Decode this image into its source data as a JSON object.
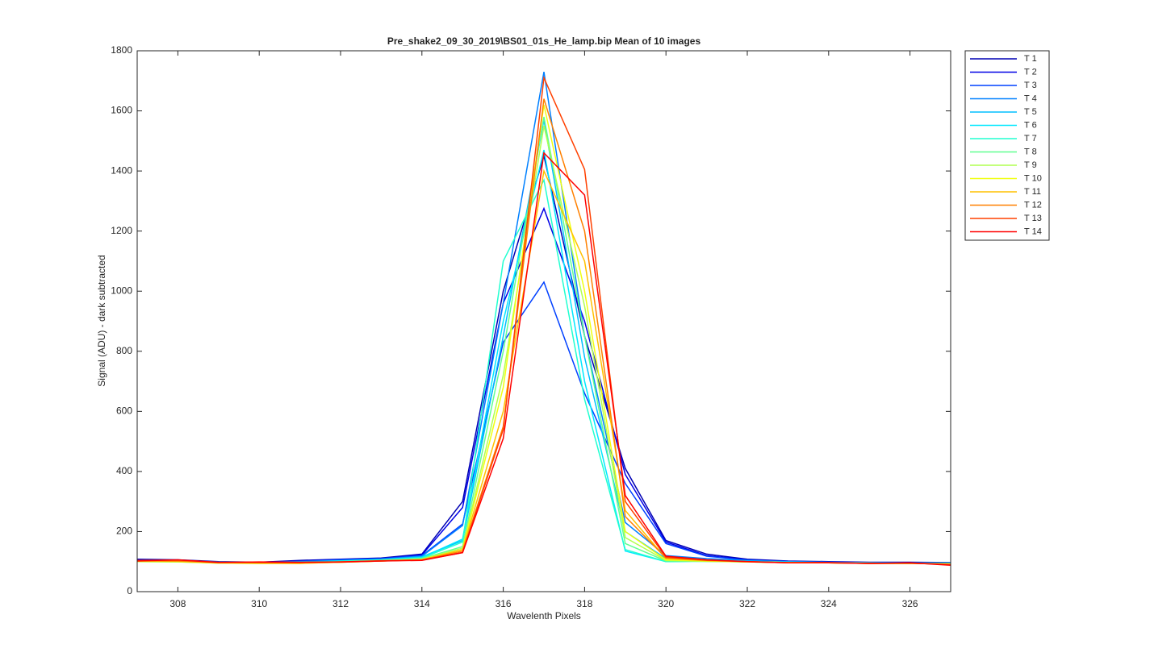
{
  "chart_data": {
    "type": "line",
    "title": "Pre_shake2_09_30_2019\\BS01_01s_He_lamp.bip  Mean of 10 images",
    "x_label": "Wavelenth Pixels",
    "y_label": "Signal (ADU) - dark subtracted",
    "x": [
      307,
      308,
      309,
      310,
      311,
      312,
      313,
      314,
      315,
      316,
      317,
      318,
      319,
      320,
      321,
      322,
      323,
      324,
      325,
      326,
      327
    ],
    "xlim": [
      307,
      327
    ],
    "xticks": [
      308,
      310,
      312,
      314,
      316,
      318,
      320,
      322,
      324,
      326
    ],
    "ylim": [
      0,
      1800
    ],
    "yticks": [
      0,
      200,
      400,
      600,
      800,
      1000,
      1200,
      1400,
      1600,
      1800
    ],
    "grid": false,
    "legend": "outside-top-right",
    "series": [
      {
        "name": "T 1",
        "color": "#0000b4",
        "values": [
          108,
          106,
          100,
          98,
          104,
          108,
          112,
          125,
          300,
          1000,
          1450,
          850,
          410,
          170,
          125,
          108,
          102,
          100,
          98,
          98,
          97
        ]
      },
      {
        "name": "T 2",
        "color": "#0000e6",
        "values": [
          106,
          104,
          99,
          98,
          102,
          107,
          110,
          122,
          280,
          960,
          1275,
          900,
          390,
          165,
          120,
          106,
          101,
          99,
          97,
          97,
          96
        ]
      },
      {
        "name": "T 3",
        "color": "#0040ff",
        "values": [
          104,
          103,
          99,
          97,
          101,
          106,
          110,
          120,
          225,
          830,
          1030,
          660,
          360,
          160,
          118,
          105,
          100,
          98,
          97,
          96,
          96
        ]
      },
      {
        "name": "T 4",
        "color": "#0080ff",
        "values": [
          103,
          102,
          98,
          97,
          100,
          104,
          108,
          118,
          220,
          960,
          1730,
          850,
          230,
          120,
          110,
          104,
          100,
          98,
          96,
          96,
          95
        ]
      },
      {
        "name": "T 5",
        "color": "#00bfff",
        "values": [
          102,
          101,
          97,
          96,
          99,
          103,
          107,
          116,
          170,
          850,
          1570,
          780,
          200,
          110,
          106,
          102,
          99,
          97,
          96,
          95,
          95
        ]
      },
      {
        "name": "T 6",
        "color": "#00e8ff",
        "values": [
          101,
          100,
          97,
          96,
          98,
          102,
          106,
          114,
          175,
          900,
          1470,
          700,
          135,
          100,
          102,
          100,
          98,
          97,
          95,
          95,
          94
        ]
      },
      {
        "name": "T 7",
        "color": "#20ffd0",
        "values": [
          100,
          100,
          96,
          95,
          97,
          101,
          105,
          112,
          165,
          1100,
          1370,
          640,
          140,
          100,
          101,
          99,
          97,
          96,
          95,
          94,
          94
        ]
      },
      {
        "name": "T 8",
        "color": "#60ff90",
        "values": [
          100,
          99,
          96,
          95,
          96,
          100,
          104,
          110,
          150,
          800,
          1580,
          850,
          160,
          102,
          101,
          99,
          97,
          96,
          95,
          94,
          93
        ]
      },
      {
        "name": "T 9",
        "color": "#b0ff50",
        "values": [
          100,
          99,
          95,
          94,
          95,
          99,
          103,
          108,
          145,
          720,
          1550,
          950,
          180,
          104,
          101,
          99,
          97,
          96,
          95,
          94,
          93
        ]
      },
      {
        "name": "T 10",
        "color": "#f0ff10",
        "values": [
          101,
          100,
          95,
          94,
          94,
          98,
          102,
          107,
          140,
          680,
          1620,
          1000,
          200,
          106,
          102,
          99,
          97,
          96,
          94,
          94,
          92
        ]
      },
      {
        "name": "T 11",
        "color": "#ffc000",
        "values": [
          102,
          101,
          96,
          95,
          94,
          98,
          102,
          106,
          140,
          600,
          1400,
          1100,
          270,
          110,
          103,
          99,
          97,
          96,
          94,
          94,
          92
        ]
      },
      {
        "name": "T 12",
        "color": "#ff8000",
        "values": [
          103,
          102,
          97,
          96,
          96,
          98,
          102,
          106,
          135,
          550,
          1640,
          1200,
          250,
          112,
          104,
          100,
          97,
          96,
          94,
          95,
          91
        ]
      },
      {
        "name": "T 13",
        "color": "#ff4000",
        "values": [
          104,
          105,
          98,
          98,
          97,
          99,
          103,
          105,
          130,
          540,
          1710,
          1405,
          300,
          115,
          105,
          100,
          96,
          96,
          94,
          95,
          90
        ]
      },
      {
        "name": "T 14",
        "color": "#ff0000",
        "values": [
          102,
          106,
          97,
          99,
          98,
          99,
          102,
          104,
          130,
          510,
          1460,
          1320,
          320,
          118,
          106,
          100,
          96,
          97,
          94,
          96,
          88
        ]
      }
    ]
  }
}
